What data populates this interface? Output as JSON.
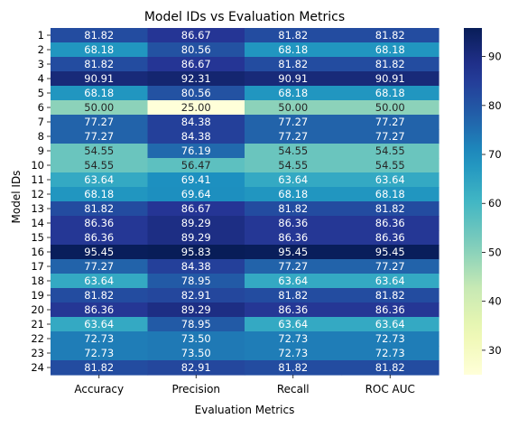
{
  "chart_data": {
    "type": "heatmap",
    "title": "Model IDs vs Evaluation Metrics",
    "xlabel": "Evaluation Metrics",
    "ylabel": "Model IDs",
    "columns": [
      "Accuracy",
      "Precision",
      "Recall",
      "ROC AUC"
    ],
    "rows": [
      "1",
      "2",
      "3",
      "4",
      "5",
      "6",
      "7",
      "8",
      "9",
      "10",
      "11",
      "12",
      "13",
      "14",
      "15",
      "16",
      "17",
      "18",
      "19",
      "20",
      "21",
      "22",
      "23",
      "24"
    ],
    "values": [
      [
        81.82,
        86.67,
        81.82,
        81.82
      ],
      [
        68.18,
        80.56,
        68.18,
        68.18
      ],
      [
        81.82,
        86.67,
        81.82,
        81.82
      ],
      [
        90.91,
        92.31,
        90.91,
        90.91
      ],
      [
        68.18,
        80.56,
        68.18,
        68.18
      ],
      [
        50.0,
        25.0,
        50.0,
        50.0
      ],
      [
        77.27,
        84.38,
        77.27,
        77.27
      ],
      [
        77.27,
        84.38,
        77.27,
        77.27
      ],
      [
        54.55,
        76.19,
        54.55,
        54.55
      ],
      [
        54.55,
        56.47,
        54.55,
        54.55
      ],
      [
        63.64,
        69.41,
        63.64,
        63.64
      ],
      [
        68.18,
        69.64,
        68.18,
        68.18
      ],
      [
        81.82,
        86.67,
        81.82,
        81.82
      ],
      [
        86.36,
        89.29,
        86.36,
        86.36
      ],
      [
        86.36,
        89.29,
        86.36,
        86.36
      ],
      [
        95.45,
        95.83,
        95.45,
        95.45
      ],
      [
        77.27,
        84.38,
        77.27,
        77.27
      ],
      [
        63.64,
        78.95,
        63.64,
        63.64
      ],
      [
        81.82,
        82.91,
        81.82,
        81.82
      ],
      [
        86.36,
        89.29,
        86.36,
        86.36
      ],
      [
        63.64,
        78.95,
        63.64,
        63.64
      ],
      [
        72.73,
        73.5,
        72.73,
        72.73
      ],
      [
        72.73,
        73.5,
        72.73,
        72.73
      ],
      [
        81.82,
        82.91,
        81.82,
        81.82
      ]
    ],
    "colormap": "YlGnBu",
    "colorbar": {
      "range": [
        25.0,
        95.83
      ],
      "ticks": [
        30,
        40,
        50,
        60,
        70,
        80,
        90
      ]
    },
    "grid": false
  }
}
